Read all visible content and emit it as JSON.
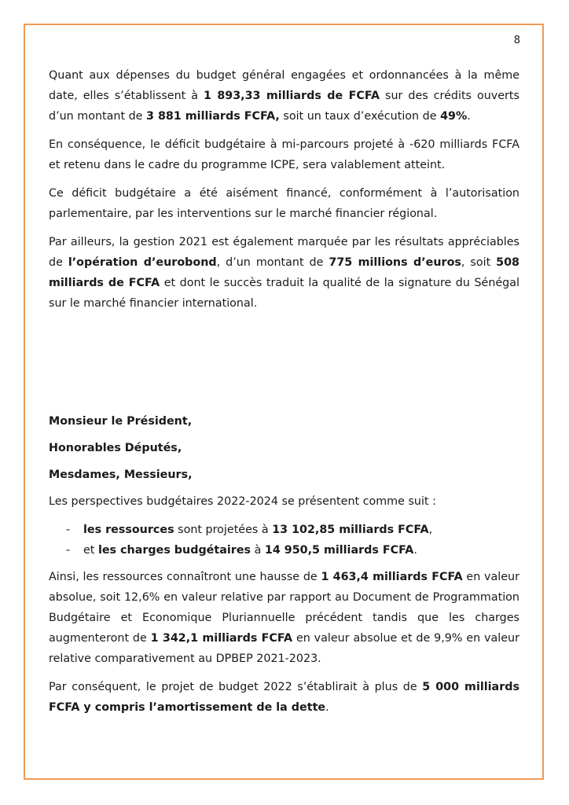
{
  "page_number": "8",
  "border_color": "#ef9a55",
  "paragraphs": {
    "p1": [
      "Quant aux dépenses du budget général engagées et ordonnancées à la même date, elles s’établissent à ",
      "1 893,33 milliards de FCFA",
      " sur des crédits ouverts d’un montant de ",
      "3 881 milliards FCFA,",
      " soit un taux d’exécution de ",
      "49%",
      "."
    ],
    "p2": [
      "En conséquence, le déficit budgétaire à mi-parcours projeté à -620 milliards FCFA et retenu dans le cadre du programme ICPE, sera valablement atteint."
    ],
    "p3": [
      "Ce déficit budgétaire a été aisément financé, conformément à l’autorisation parlementaire, par les interventions sur le marché financier régional."
    ],
    "p4": [
      "Par ailleurs, la gestion 2021 est également marquée par les résultats appréciables de ",
      "l’opération d’eurobond",
      ", d’un montant de ",
      "775 millions d’euros",
      ", soit ",
      "508 milliards de FCFA",
      " et dont le succès traduit la qualité de la signature du Sénégal sur le marché financier international."
    ],
    "salutations": [
      "Monsieur le Président,",
      "Honorables Députés,",
      "Mesdames, Messieurs,"
    ],
    "p5": [
      "Les perspectives budgétaires 2022-2024 se présentent comme suit :"
    ],
    "bullets": [
      [
        "-",
        "les ressources",
        " sont projetées à ",
        "13 102,85 milliards FCFA",
        ","
      ],
      [
        "-",
        "et ",
        "les charges budgétaires",
        " à ",
        "14 950,5 milliards FCFA",
        "."
      ]
    ],
    "p6": [
      "Ainsi, les ressources connaîtront une hausse de ",
      "1 463,4 milliards FCFA",
      " en valeur absolue, soit 12,6% en valeur relative par rapport au Document de Programmation Budgétaire et Economique Pluriannuelle précédent tandis que les charges augmenteront de ",
      "1 342,1 milliards FCFA",
      " en valeur absolue et de 9,9% en valeur relative comparativement au DPBEP 2021-2023."
    ],
    "p7": [
      "Par conséquent, le projet de budget 2022 s’établirait à plus de ",
      "5 000 milliards FCFA y compris l’amortissement de la dette",
      "."
    ]
  }
}
